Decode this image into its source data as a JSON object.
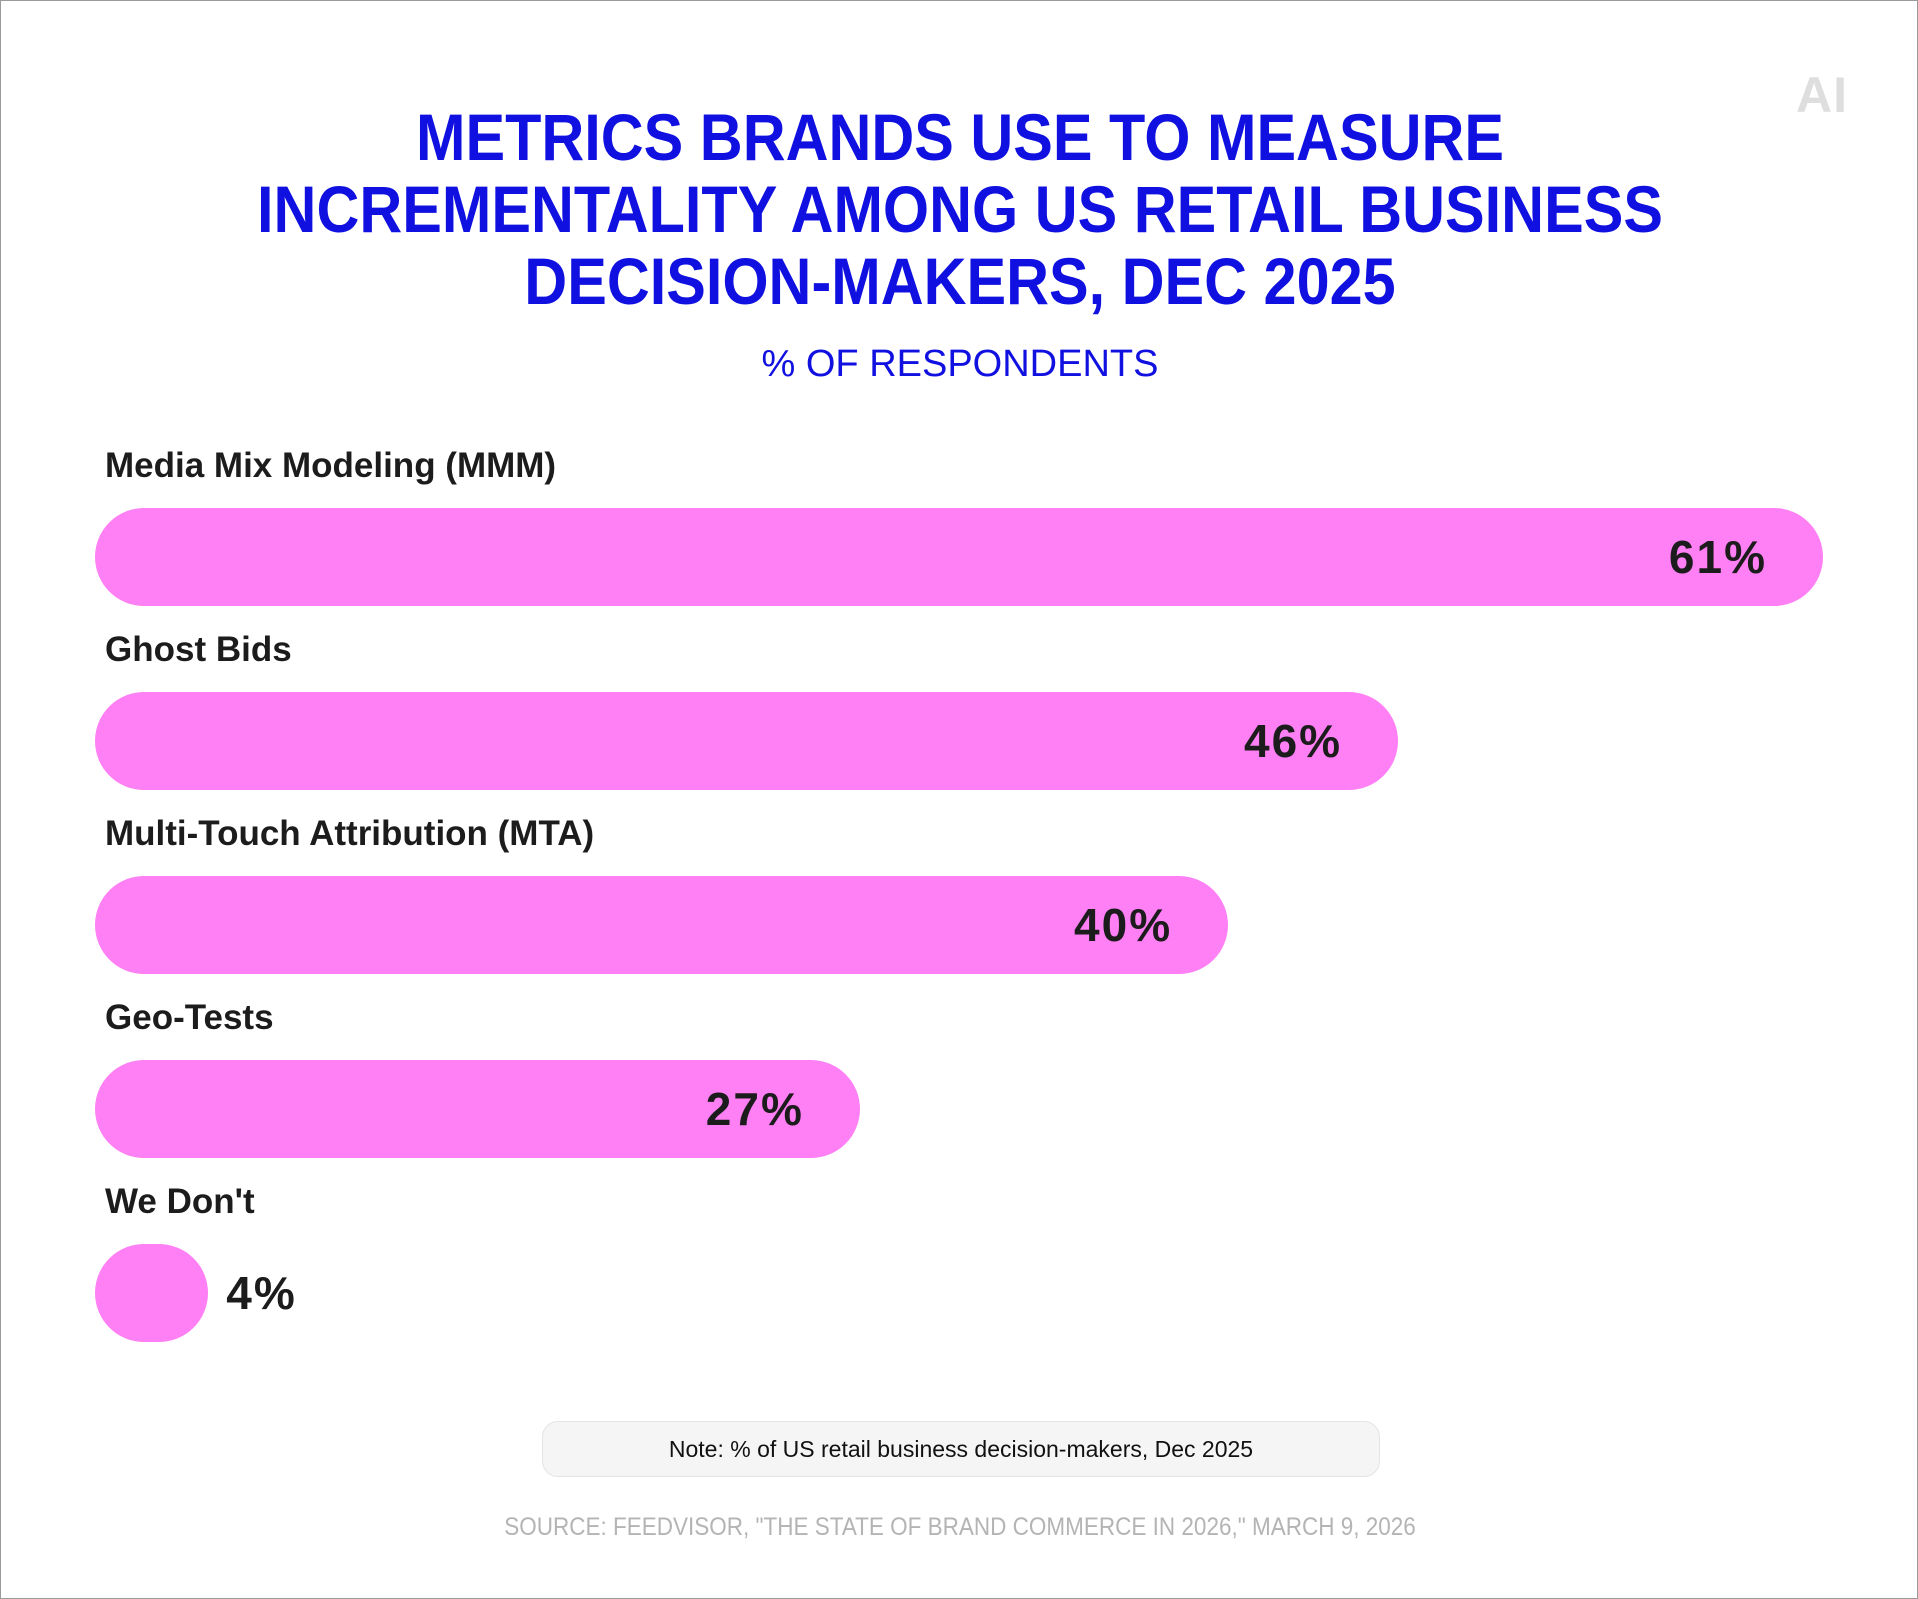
{
  "header": {
    "logo": "AI",
    "title": "METRICS BRANDS USE TO MEASURE INCREMENTALITY AMONG US RETAIL BUSINESS DECISION-MAKERS, DEC 2025",
    "subtitle": "% OF RESPONDENTS"
  },
  "chart_data": {
    "type": "bar",
    "orientation": "horizontal",
    "title": "METRICS BRANDS USE TO MEASURE INCREMENTALITY AMONG US RETAIL BUSINESS DECISION-MAKERS, DEC 2025",
    "subtitle": "% OF RESPONDENTS",
    "categories": [
      "Media Mix Modeling (MMM)",
      "Ghost Bids",
      "Multi-Touch Attribution (MTA)",
      "Geo-Tests",
      "We Don't"
    ],
    "values": [
      61,
      46,
      40,
      27,
      4
    ],
    "value_labels": [
      "61%",
      "46%",
      "40%",
      "27%",
      "4%"
    ],
    "unit": "%",
    "bar_color": "#ff7ff4",
    "xlim": [
      0,
      61
    ],
    "grid": false,
    "legend": "none"
  },
  "footer": {
    "note": "Note: % of US retail business decision-makers, Dec 2025",
    "source": "SOURCE: FEEDVISOR, \"THE STATE OF BRAND COMMERCE IN 2026,\" MARCH 9, 2026"
  },
  "colors": {
    "title": "#1010e0",
    "bar": "#ff7ff4",
    "text": "#1c1c1c",
    "source": "#b4b4b4"
  }
}
